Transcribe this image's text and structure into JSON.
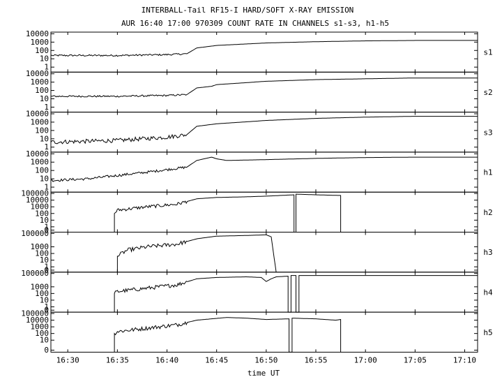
{
  "chart_data": {
    "type": "line",
    "title": "INTERBALL-Tail RF15-I HARD/SOFT X-RAY EMISSION",
    "subtitle": "AUR 16:40 17:00 970309  COUNT RATE IN CHANNELS s1-s3, h1-h5",
    "xlabel": "time UT",
    "x_tick_labels": [
      "16:30",
      "16:35",
      "16:40",
      "16:45",
      "16:50",
      "16:55",
      "17:00",
      "17:05",
      "17:10"
    ],
    "x_ticks_min": [
      30,
      35,
      40,
      45,
      50,
      55,
      60,
      65,
      70
    ],
    "xlim": [
      28.3,
      71.3
    ],
    "x_unit_note": "minutes after 16:00 UT",
    "y_scale": "log",
    "grid": false,
    "panels": [
      {
        "name": "s1",
        "yticks": [
          "10000",
          "1000",
          "100",
          "10",
          "1"
        ],
        "yexp": [
          4,
          3,
          2,
          1,
          0
        ],
        "ylim_exp": [
          -0.6,
          4.2
        ],
        "series": [
          {
            "values": [
              [
                28.3,
                1.4
              ],
              [
                35,
                1.4
              ],
              [
                40,
                1.5
              ],
              [
                42,
                1.6
              ],
              [
                43,
                2.3
              ],
              [
                45,
                2.6
              ],
              [
                50,
                2.9
              ],
              [
                55,
                3.05
              ],
              [
                60,
                3.15
              ],
              [
                65,
                3.2
              ],
              [
                71.3,
                3.2
              ]
            ],
            "noise": 0.1,
            "noise_end": 42
          }
        ]
      },
      {
        "name": "s2",
        "yticks": [
          "10000",
          "1000",
          "100",
          "10",
          "1"
        ],
        "yexp": [
          4,
          3,
          2,
          1,
          0
        ],
        "ylim_exp": [
          -0.6,
          4.2
        ],
        "series": [
          {
            "values": [
              [
                28.3,
                1.3
              ],
              [
                35,
                1.3
              ],
              [
                40,
                1.4
              ],
              [
                42,
                1.5
              ],
              [
                43,
                2.3
              ],
              [
                44.5,
                2.5
              ],
              [
                45,
                2.7
              ],
              [
                50,
                3.1
              ],
              [
                55,
                3.3
              ],
              [
                60,
                3.4
              ],
              [
                65,
                3.5
              ],
              [
                71.3,
                3.5
              ]
            ],
            "noise": 0.1,
            "noise_end": 42
          }
        ]
      },
      {
        "name": "s3",
        "yticks": [
          "10000",
          "1000",
          "100",
          "10",
          "1"
        ],
        "yexp": [
          4,
          3,
          2,
          1,
          0
        ],
        "ylim_exp": [
          -0.6,
          4.2
        ],
        "series": [
          {
            "values": [
              [
                28.3,
                0.6
              ],
              [
                35,
                0.8
              ],
              [
                40,
                1.2
              ],
              [
                42,
                1.5
              ],
              [
                43,
                2.5
              ],
              [
                45,
                2.8
              ],
              [
                50,
                3.2
              ],
              [
                55,
                3.45
              ],
              [
                60,
                3.6
              ],
              [
                65,
                3.7
              ],
              [
                71.3,
                3.7
              ]
            ],
            "noise": 0.25,
            "noise_end": 42
          }
        ]
      },
      {
        "name": "h1",
        "yticks": [
          "10000",
          "1000",
          "100",
          "10",
          "1"
        ],
        "yexp": [
          4,
          3,
          2,
          1,
          0
        ],
        "ylim_exp": [
          -0.6,
          4.2
        ],
        "series": [
          {
            "values": [
              [
                28.3,
                0.8
              ],
              [
                32,
                1.0
              ],
              [
                35,
                1.4
              ],
              [
                38,
                1.8
              ],
              [
                40,
                2.1
              ],
              [
                42,
                2.4
              ],
              [
                43,
                3.2
              ],
              [
                44.5,
                3.6
              ],
              [
                45,
                3.4
              ],
              [
                46,
                3.2
              ],
              [
                50,
                3.3
              ],
              [
                55,
                3.45
              ],
              [
                60,
                3.55
              ],
              [
                65,
                3.6
              ],
              [
                71.3,
                3.6
              ]
            ],
            "noise": 0.15,
            "noise_end": 42
          }
        ]
      },
      {
        "name": "h2",
        "yticks": [
          "100000",
          "10000",
          "1000",
          "100",
          "10",
          "1",
          "0"
        ],
        "yexp": [
          5,
          4,
          3,
          2,
          1,
          0,
          -0.5
        ],
        "ylim_exp": [
          -0.8,
          5.2
        ],
        "series": [
          {
            "values": [
              [
                34.7,
                -0.8
              ],
              [
                34.7,
                2.0
              ],
              [
                35,
                2.5
              ],
              [
                38,
                3.0
              ],
              [
                41,
                3.4
              ],
              [
                43,
                4.2
              ],
              [
                45,
                4.4
              ],
              [
                48,
                4.5
              ],
              [
                50,
                4.6
              ],
              [
                52.8,
                4.8
              ],
              [
                52.8,
                -0.8
              ],
              [
                53,
                -0.8
              ],
              [
                53,
                4.9
              ],
              [
                55,
                4.8
              ],
              [
                57.5,
                4.7
              ],
              [
                57.5,
                -0.8
              ]
            ],
            "noise": 0.25,
            "noise_end": 42
          }
        ]
      },
      {
        "name": "h3",
        "yticks": [
          "100000",
          "1000",
          "100",
          "10",
          "1",
          "0"
        ],
        "yexp": [
          5,
          3,
          2,
          1,
          0,
          -0.5
        ],
        "ylim_exp": [
          -0.8,
          5.2
        ],
        "series": [
          {
            "values": [
              [
                35,
                -0.8
              ],
              [
                35,
                1.6
              ],
              [
                36,
                2.5
              ],
              [
                38,
                3.0
              ],
              [
                41,
                3.4
              ],
              [
                43,
                4.2
              ],
              [
                45,
                4.6
              ],
              [
                48,
                4.7
              ],
              [
                50,
                4.8
              ],
              [
                50.5,
                4.5
              ],
              [
                51,
                -0.8
              ]
            ],
            "noise": 0.3,
            "noise_end": 42
          }
        ]
      },
      {
        "name": "h4",
        "yticks": [
          "100000",
          "1000",
          "100",
          "10",
          "1",
          "0"
        ],
        "yexp": [
          5,
          3,
          2,
          1,
          0,
          -0.5
        ],
        "ylim_exp": [
          -0.8,
          5.2
        ],
        "series": [
          {
            "values": [
              [
                34.7,
                -0.8
              ],
              [
                34.7,
                2.0
              ],
              [
                35,
                2.3
              ],
              [
                38,
                2.8
              ],
              [
                41,
                3.3
              ],
              [
                43,
                4.2
              ],
              [
                45,
                4.4
              ],
              [
                48,
                4.5
              ],
              [
                49.5,
                4.4
              ],
              [
                50,
                3.8
              ],
              [
                50.5,
                4.2
              ],
              [
                51,
                4.5
              ],
              [
                52.2,
                4.6
              ],
              [
                52.2,
                -0.8
              ],
              [
                52.5,
                -0.8
              ],
              [
                52.5,
                4.7
              ],
              [
                53,
                4.7
              ],
              [
                53,
                -0.8
              ],
              [
                53.3,
                -0.8
              ],
              [
                53.3,
                4.7
              ],
              [
                71.3,
                4.7
              ]
            ],
            "noise": 0.3,
            "noise_end": 42
          }
        ]
      },
      {
        "name": "h5",
        "yticks": [
          "100000",
          "10000",
          "1000",
          "100",
          "10",
          "0"
        ],
        "yexp": [
          5,
          4,
          3,
          2,
          1,
          -0.5
        ],
        "ylim_exp": [
          -0.8,
          5.2
        ],
        "series": [
          {
            "values": [
              [
                34.7,
                -0.8
              ],
              [
                34.7,
                2.0
              ],
              [
                35,
                2.3
              ],
              [
                38,
                2.8
              ],
              [
                41,
                3.3
              ],
              [
                43,
                4.0
              ],
              [
                46,
                4.4
              ],
              [
                48,
                4.3
              ],
              [
                50,
                4.1
              ],
              [
                52.3,
                4.2
              ],
              [
                52.3,
                -0.8
              ],
              [
                52.6,
                -0.8
              ],
              [
                52.6,
                4.3
              ],
              [
                55,
                4.2
              ],
              [
                57,
                4.0
              ],
              [
                57.5,
                4.1
              ],
              [
                57.5,
                -0.8
              ]
            ],
            "noise": 0.3,
            "noise_end": 42
          }
        ]
      }
    ]
  }
}
